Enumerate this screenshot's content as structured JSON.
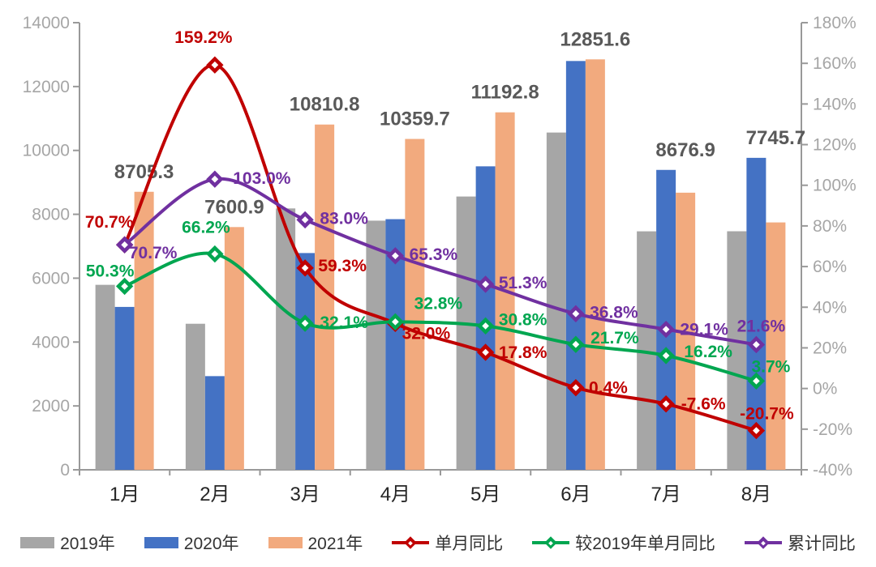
{
  "chart_data": {
    "type": "combo-bar-line",
    "title": "",
    "categories": [
      "1月",
      "2月",
      "3月",
      "4月",
      "5月",
      "6月",
      "7月",
      "8月"
    ],
    "bar_series": [
      {
        "name": "2019年",
        "color": "#a6a6a6",
        "labeled": false,
        "values": [
          5792,
          4573,
          8184,
          7801,
          8557,
          10560,
          7467,
          7469
        ]
      },
      {
        "name": "2020年",
        "color": "#4472c4",
        "labeled": false,
        "values": [
          5100,
          2933,
          6787,
          7848,
          9502,
          12800,
          9390,
          9768
        ]
      },
      {
        "name": "2021年",
        "color": "#f2aa7e",
        "labeled": true,
        "values": [
          8705.3,
          7600.9,
          10810.8,
          10359.7,
          11192.8,
          12851.6,
          8676.9,
          7745.7
        ]
      }
    ],
    "bar_value_labels": [
      "8705.3",
      "7600.9",
      "10810.8",
      "10359.7",
      "11192.8",
      "12851.6",
      "8676.9",
      "7745.7"
    ],
    "line_series": [
      {
        "name": "单月同比",
        "slug": "monthly-yoy",
        "color": "#c00000",
        "values": [
          70.7,
          159.2,
          59.3,
          32.0,
          17.8,
          0.4,
          -7.6,
          -20.7
        ],
        "labels": [
          "70.7%",
          "159.2%",
          "59.3%",
          "32.0%",
          "17.8%",
          "0.4%",
          "-7.6%",
          "-20.7%"
        ]
      },
      {
        "name": "较2019年单月同比",
        "slug": "vs-2019-monthly-yoy",
        "color": "#00a650",
        "values": [
          50.3,
          66.2,
          32.1,
          32.8,
          30.8,
          21.7,
          16.2,
          3.7
        ],
        "labels": [
          "50.3%",
          "66.2%",
          "32.1%",
          "32.8%",
          "30.8%",
          "21.7%",
          "16.2%",
          "3.7%"
        ]
      },
      {
        "name": "累计同比",
        "slug": "cumulative-yoy",
        "color": "#7030a0",
        "values": [
          70.7,
          103.0,
          83.0,
          65.3,
          51.3,
          36.8,
          29.1,
          21.6
        ],
        "labels": [
          "70.7%",
          "103.0%",
          "83.0%",
          "65.3%",
          "51.3%",
          "36.8%",
          "29.1%",
          "21.6%"
        ]
      }
    ],
    "left_axis": {
      "min": 0,
      "max": 14000,
      "step": 2000,
      "tick_labels": [
        "0",
        "2000",
        "4000",
        "6000",
        "8000",
        "10000",
        "12000",
        "14000"
      ]
    },
    "right_axis": {
      "min": -40,
      "max": 180,
      "step": 20,
      "tick_labels": [
        "-40%",
        "-20%",
        "0%",
        "20%",
        "40%",
        "60%",
        "80%",
        "100%",
        "120%",
        "140%",
        "160%",
        "180%"
      ]
    },
    "legend": [
      {
        "label": "2019年",
        "swatch": "bar",
        "color": "#a6a6a6"
      },
      {
        "label": "2020年",
        "swatch": "bar",
        "color": "#4472c4"
      },
      {
        "label": "2021年",
        "swatch": "bar",
        "color": "#f2aa7e"
      },
      {
        "label": "单月同比",
        "swatch": "line",
        "color": "#c00000"
      },
      {
        "label": "较2019年单月同比",
        "swatch": "line",
        "color": "#00a650"
      },
      {
        "label": "累计同比",
        "swatch": "line",
        "color": "#7030a0"
      }
    ],
    "colors": {
      "bar_value_label": "#595959",
      "axis_line": "#999999",
      "axis_tick_label": "#a6a6a6",
      "month_label": "#262626"
    }
  }
}
